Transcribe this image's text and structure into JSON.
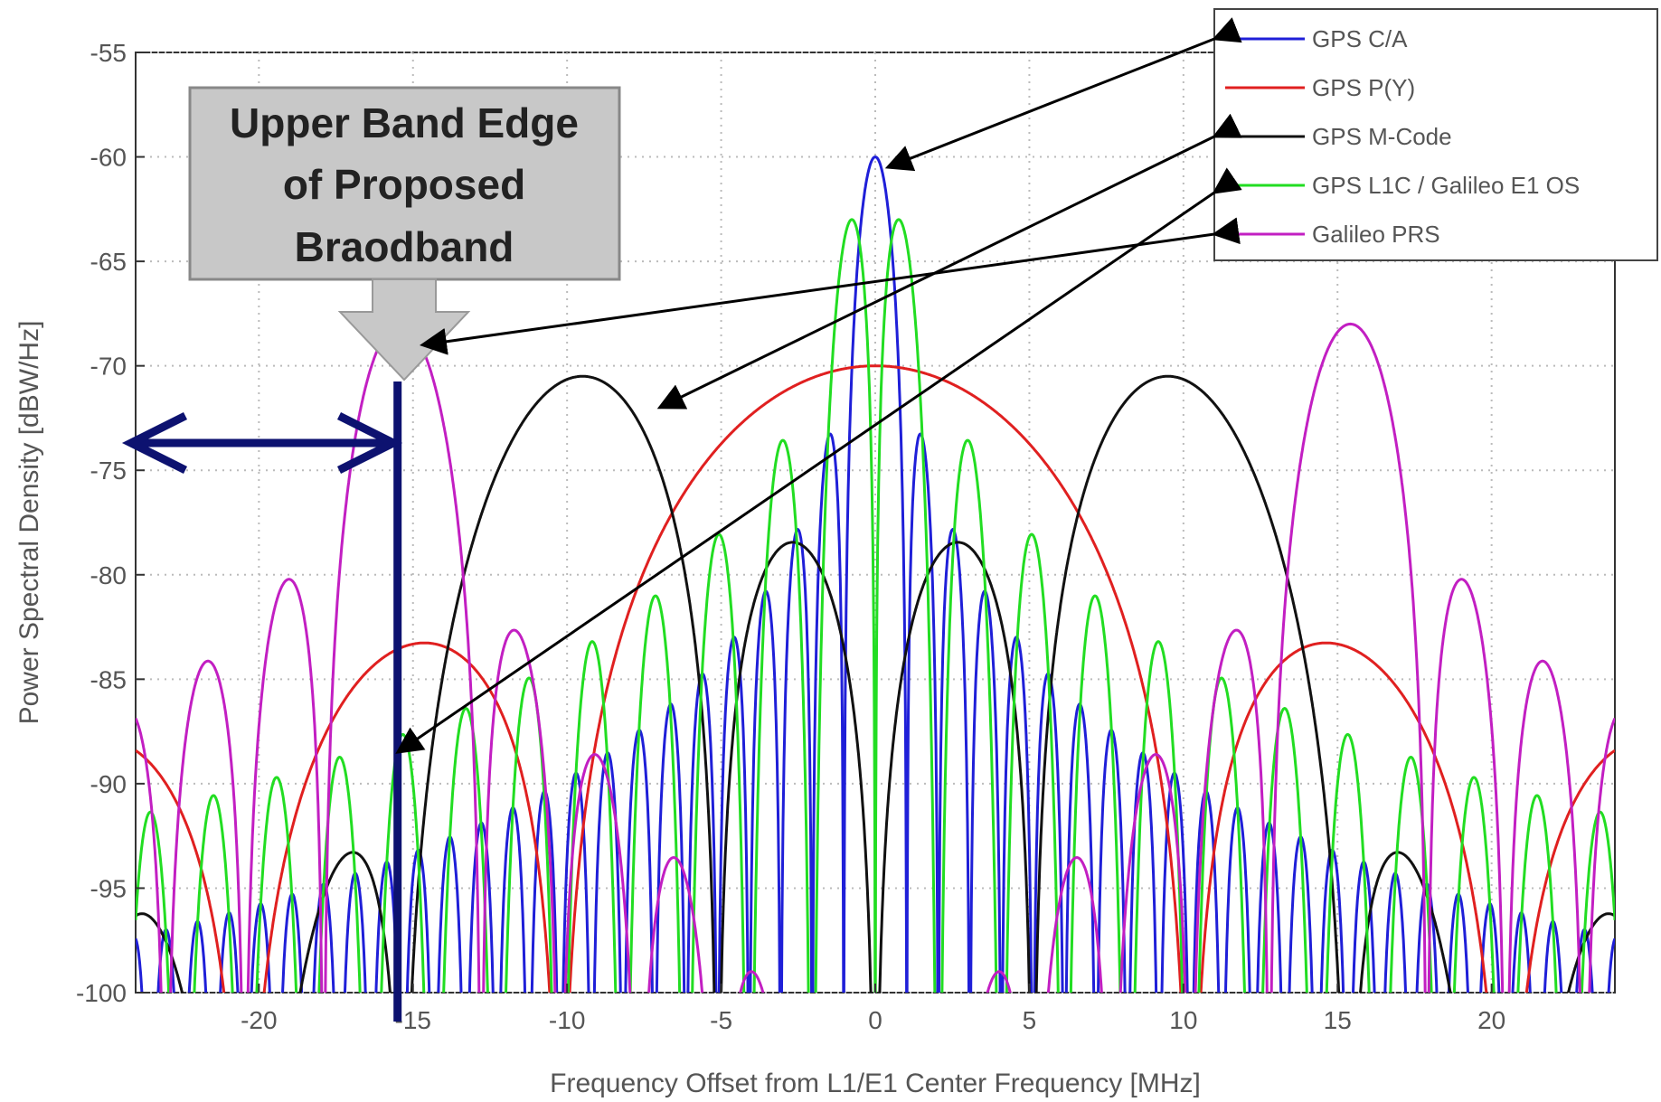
{
  "chart_data": {
    "type": "line",
    "title": "",
    "xlabel": "Frequency Offset from L1/E1 Center Frequency [MHz]",
    "ylabel": "Power Spectral Density [dBW/Hz]",
    "xlim": [
      -24,
      24
    ],
    "ylim": [
      -100,
      -55
    ],
    "x_ticks": [
      -20,
      -15,
      -10,
      -5,
      0,
      5,
      10,
      15,
      20
    ],
    "y_ticks": [
      -55,
      -60,
      -65,
      -70,
      -75,
      -80,
      -85,
      -90,
      -95,
      -100
    ],
    "grid": true,
    "legend_position": "top-right",
    "series": [
      {
        "name": "GPS C/A",
        "color": "#1f1fd8",
        "peak_x": 0,
        "peak_y": -60,
        "shape": "sinc2",
        "chip_rate_mhz": 1.023,
        "subcarrier_mhz": 0
      },
      {
        "name": "GPS P(Y)",
        "color": "#e02020",
        "peak_x": 0,
        "peak_y": -70,
        "shape": "sinc2",
        "chip_rate_mhz": 10.23,
        "subcarrier_mhz": 0
      },
      {
        "name": "GPS M-Code",
        "color": "#111111",
        "peak_x": 9.5,
        "peak_y": -70.5,
        "shape": "boc_sin",
        "chip_rate_mhz": 5.115,
        "subcarrier_mhz": 10.23
      },
      {
        "name": "GPS L1C / Galileo E1 OS",
        "color": "#22dd22",
        "peak_x": 1,
        "peak_y": -63,
        "shape": "boc_sin",
        "chip_rate_mhz": 1.023,
        "subcarrier_mhz": 1.023
      },
      {
        "name": "Galileo PRS",
        "color": "#c21fc2",
        "peak_x": 15.3,
        "peak_y": -68,
        "shape": "boc_cos",
        "chip_rate_mhz": 2.5575,
        "subcarrier_mhz": 15.345
      }
    ],
    "annotation": {
      "text_lines": [
        "Upper Band Edge",
        "of Proposed",
        "Braodband"
      ],
      "edge_x": -15.5
    }
  }
}
